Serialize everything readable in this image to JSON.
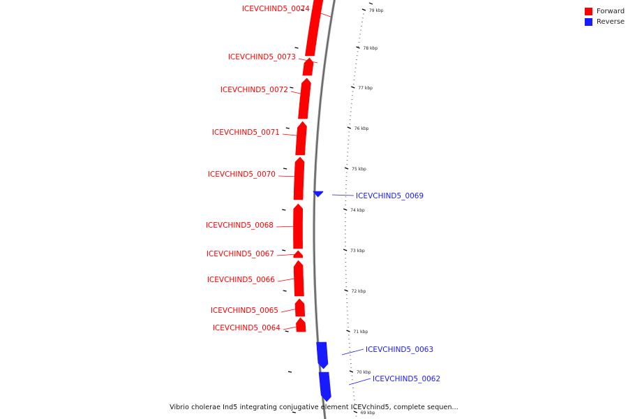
{
  "legend": {
    "forward_label": "Forward",
    "reverse_label": "Reverse",
    "forward_color": "#ff0000",
    "reverse_color": "#1a1aff"
  },
  "caption": "Vibrio cholerae Ind5 integrating conjugative element ICEVchind5, complete sequen...",
  "ticks": [
    {
      "label": "79 kbp"
    },
    {
      "label": "78 kbp"
    },
    {
      "label": "77 kbp"
    },
    {
      "label": "76 kbp"
    },
    {
      "label": "75 kbp"
    },
    {
      "label": "74 kbp"
    },
    {
      "label": "73 kbp"
    },
    {
      "label": "72 kbp"
    },
    {
      "label": "71 kbp"
    },
    {
      "label": "70 kbp"
    },
    {
      "label": "69 kbp"
    }
  ],
  "genes": [
    {
      "name": "ICEVCHIND5_0074",
      "strand": "forward"
    },
    {
      "name": "ICEVCHIND5_0073",
      "strand": "forward"
    },
    {
      "name": "ICEVCHIND5_0072",
      "strand": "forward"
    },
    {
      "name": "ICEVCHIND5_0071",
      "strand": "forward"
    },
    {
      "name": "ICEVCHIND5_0070",
      "strand": "forward"
    },
    {
      "name": "ICEVCHIND5_0069",
      "strand": "reverse"
    },
    {
      "name": "ICEVCHIND5_0068",
      "strand": "forward"
    },
    {
      "name": "ICEVCHIND5_0067",
      "strand": "forward"
    },
    {
      "name": "ICEVCHIND5_0066",
      "strand": "forward"
    },
    {
      "name": "ICEVCHIND5_0065",
      "strand": "forward"
    },
    {
      "name": "ICEVCHIND5_0064",
      "strand": "forward"
    },
    {
      "name": "ICEVCHIND5_0063",
      "strand": "reverse"
    },
    {
      "name": "ICEVCHIND5_0062",
      "strand": "reverse"
    }
  ]
}
